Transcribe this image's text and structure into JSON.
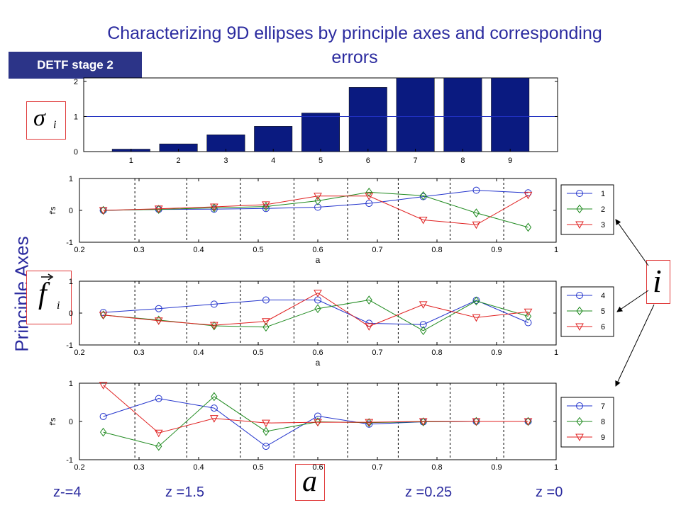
{
  "title": "Characterizing 9D ellipses by principle axes and corresponding errors",
  "badge": "DETF stage 2",
  "side_label": "Principle Axes",
  "symbols": {
    "sigma": "σ",
    "sigma_sub": "i",
    "f": "f",
    "f_sub": "i",
    "i": "i",
    "a": "a"
  },
  "z_labels": [
    "z-=4",
    "z =1.5",
    "z =0.25",
    "z =0"
  ],
  "colors": {
    "bar": "#0a1a80",
    "ref_line": "#2030c0",
    "series1": "#2233cc",
    "series2": "#1f8a1f",
    "series3": "#e02020",
    "text_accent": "#2b2b9f",
    "badge": "#2c3488",
    "box_border": "#e03a3a"
  },
  "chart_data": [
    {
      "type": "bar",
      "categories": [
        "1",
        "2",
        "3",
        "4",
        "5",
        "6",
        "7",
        "8",
        "9"
      ],
      "values": [
        0.07,
        0.22,
        0.48,
        0.72,
        1.1,
        1.83,
        2.1,
        2.1,
        2.1
      ],
      "reference_line": 1,
      "ylim": [
        0,
        2.1
      ],
      "yticks": [
        "0",
        "1",
        "2"
      ],
      "title": "",
      "xlabel": "",
      "ylabel": ""
    },
    {
      "type": "line",
      "x": [
        0.24,
        0.333,
        0.426,
        0.513,
        0.6,
        0.686,
        0.777,
        0.866,
        0.953
      ],
      "xlim": [
        0.2,
        1
      ],
      "ylim": [
        -1,
        1
      ],
      "xticks": [
        "0.2",
        "0.3",
        "0.4",
        "0.5",
        "0.6",
        "0.7",
        "0.8",
        "0.9",
        "1"
      ],
      "yticks": [
        "-1",
        "0",
        "1"
      ],
      "xlabel": "a",
      "ylabel": "f's",
      "vlines": [
        0.293,
        0.38,
        0.47,
        0.56,
        0.65,
        0.735,
        0.822,
        0.912
      ],
      "legend": "right",
      "series": [
        {
          "name": "1",
          "marker": "circle",
          "values": [
            0.0,
            0.03,
            0.04,
            0.06,
            0.1,
            0.22,
            0.43,
            0.63,
            0.55
          ]
        },
        {
          "name": "2",
          "marker": "diamond",
          "values": [
            0.0,
            0.03,
            0.08,
            0.12,
            0.3,
            0.57,
            0.46,
            -0.08,
            -0.53
          ]
        },
        {
          "name": "3",
          "marker": "triangle",
          "values": [
            0.0,
            0.05,
            0.11,
            0.18,
            0.45,
            0.45,
            -0.3,
            -0.45,
            0.48
          ]
        }
      ]
    },
    {
      "type": "line",
      "x": [
        0.24,
        0.333,
        0.426,
        0.513,
        0.6,
        0.686,
        0.777,
        0.866,
        0.953
      ],
      "xlim": [
        0.2,
        1
      ],
      "ylim": [
        -1,
        1
      ],
      "xticks": [
        "0.2",
        "0.3",
        "0.4",
        "0.5",
        "0.6",
        "0.7",
        "0.8",
        "0.9",
        "1"
      ],
      "yticks": [
        "-1",
        "0",
        "1"
      ],
      "xlabel": "a",
      "ylabel": "",
      "vlines": [
        0.293,
        0.38,
        0.47,
        0.56,
        0.65,
        0.735,
        0.822,
        0.912
      ],
      "legend": "right",
      "series": [
        {
          "name": "4",
          "marker": "circle",
          "values": [
            0.02,
            0.14,
            0.28,
            0.41,
            0.41,
            -0.32,
            -0.36,
            0.4,
            -0.3
          ]
        },
        {
          "name": "5",
          "marker": "diamond",
          "values": [
            -0.06,
            -0.22,
            -0.4,
            -0.44,
            0.14,
            0.41,
            -0.55,
            0.38,
            -0.1
          ]
        },
        {
          "name": "6",
          "marker": "triangle",
          "values": [
            -0.06,
            -0.24,
            -0.38,
            -0.26,
            0.63,
            -0.42,
            0.27,
            -0.14,
            0.04
          ]
        }
      ]
    },
    {
      "type": "line",
      "x": [
        0.24,
        0.333,
        0.426,
        0.513,
        0.6,
        0.686,
        0.777,
        0.866,
        0.953
      ],
      "xlim": [
        0.2,
        1
      ],
      "ylim": [
        -1,
        1
      ],
      "xticks": [
        "0.2",
        "0.3",
        "0.4",
        "0.5",
        "0.6",
        "0.7",
        "0.8",
        "0.9",
        "1"
      ],
      "yticks": [
        "-1",
        "0",
        "1"
      ],
      "xlabel": "",
      "ylabel": "f's",
      "vlines": [
        0.293,
        0.38,
        0.47,
        0.56,
        0.65,
        0.735,
        0.822,
        0.912
      ],
      "legend": "right",
      "series": [
        {
          "name": "7",
          "marker": "circle",
          "values": [
            0.13,
            0.6,
            0.35,
            -0.65,
            0.14,
            -0.07,
            -0.01,
            0.0,
            0.0
          ]
        },
        {
          "name": "8",
          "marker": "diamond",
          "values": [
            -0.28,
            -0.65,
            0.65,
            -0.26,
            -0.01,
            -0.03,
            -0.01,
            0.0,
            0.0
          ]
        },
        {
          "name": "9",
          "marker": "triangle",
          "values": [
            0.95,
            -0.3,
            0.08,
            -0.04,
            -0.02,
            -0.02,
            0.0,
            0.0,
            0.0
          ]
        }
      ]
    }
  ]
}
